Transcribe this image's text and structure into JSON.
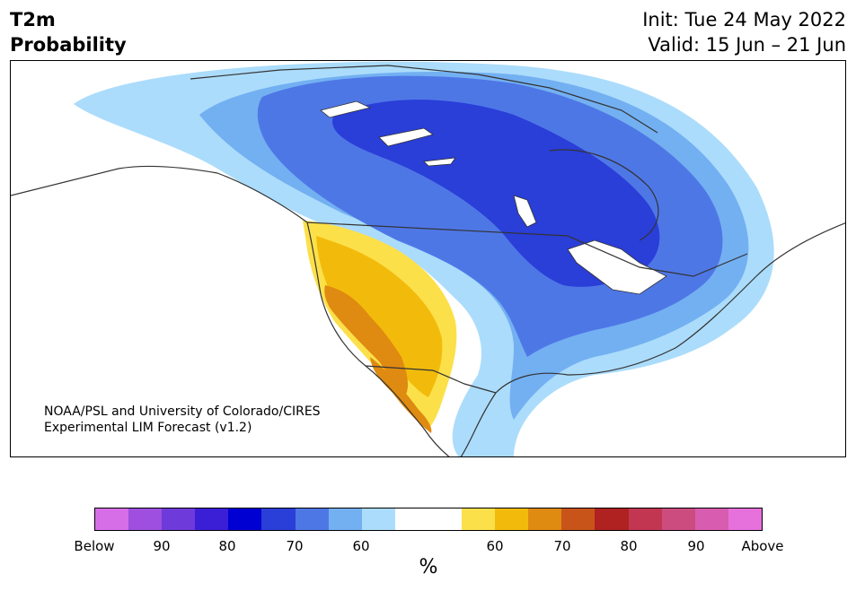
{
  "header": {
    "title_line1": "T2m",
    "title_line2": "Probability",
    "init": "Init: Tue 24 May 2022",
    "valid": "Valid: 15 Jun – 21 Jun"
  },
  "map": {
    "credit_line1": "NOAA/PSL and University of Colorado/CIRES",
    "credit_line2": "Experimental LIM Forecast (v1.2)",
    "palette": {
      "below_50": "#abdcfb",
      "below_60": "#73b0f2",
      "below_70": "#4e77e6",
      "below_80": "#2a3ed8",
      "above_50": "#fce04a",
      "above_60": "#f2bb0c",
      "above_70": "#df8a10"
    }
  },
  "colorbar": {
    "colors": [
      "#d66ee8",
      "#9e4fe0",
      "#6e3ada",
      "#3b1fd6",
      "#0000d2",
      "#2a3ed8",
      "#4e77e6",
      "#73b0f2",
      "#abdcfb",
      "#ffffff",
      "#ffffff",
      "#fce04a",
      "#f2bb0c",
      "#df8a10",
      "#c9541a",
      "#b02121",
      "#c23652",
      "#cc4c80",
      "#d85cb0",
      "#e670dc"
    ],
    "ticks": [
      "Below",
      "90",
      "80",
      "70",
      "60",
      "60",
      "70",
      "80",
      "90",
      "Above"
    ],
    "unit": "%"
  }
}
